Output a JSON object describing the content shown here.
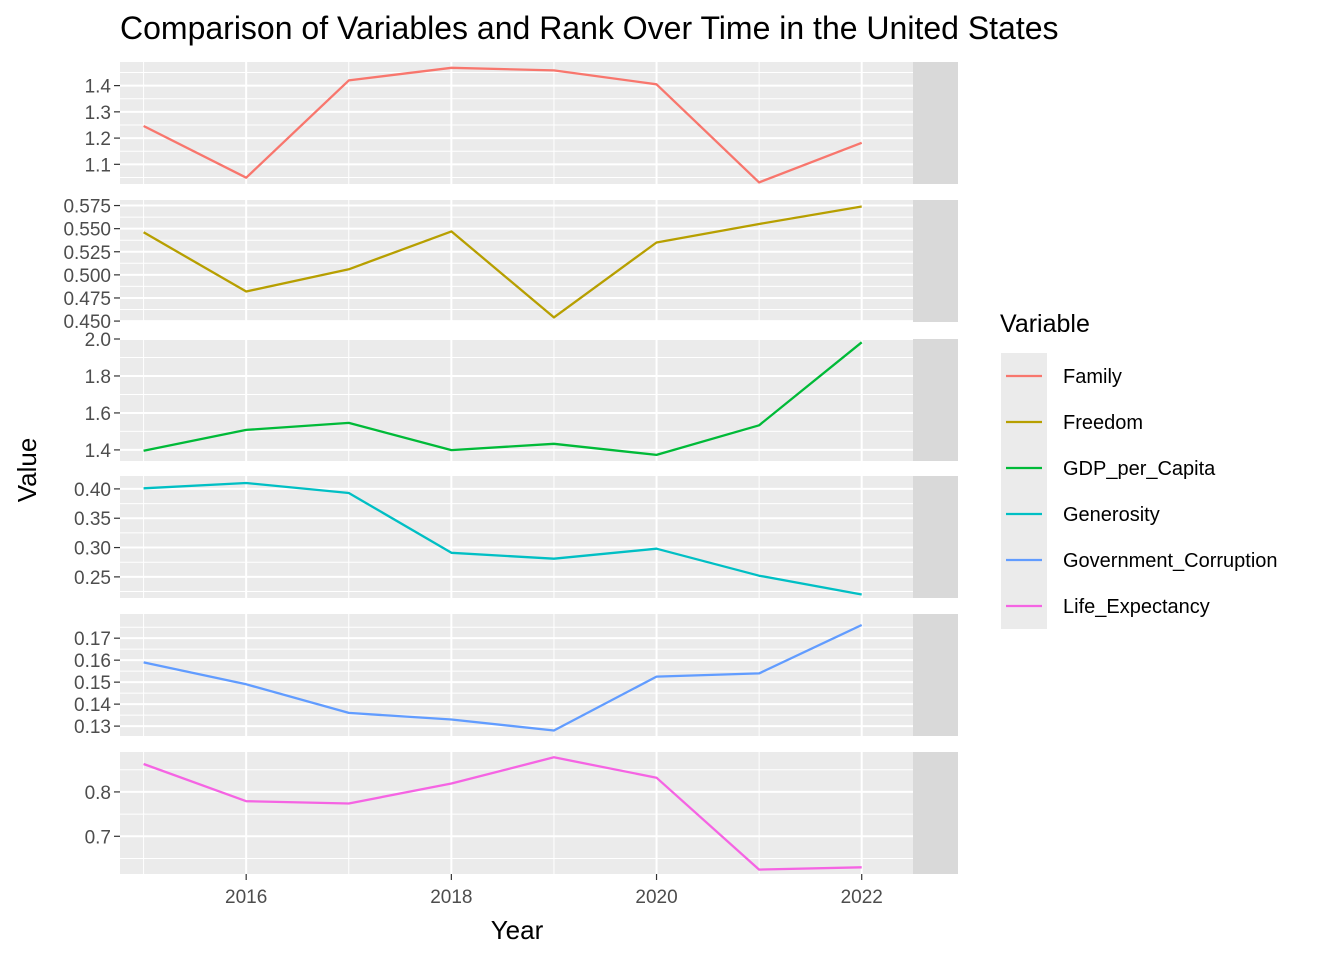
{
  "chart_data": {
    "type": "line",
    "title": "Comparison of Variables and Rank Over Time in the United States",
    "xlabel": "Year",
    "ylabel": "Value",
    "x": [
      2015,
      2016,
      2017,
      2018,
      2019,
      2020,
      2021,
      2022
    ],
    "x_ticks": [
      "2016",
      "2018",
      "2020",
      "2022"
    ],
    "xlim": [
      2014.77,
      2022.5
    ],
    "legend": {
      "title": "Variable",
      "placement": "right"
    },
    "grid": true,
    "facets": [
      {
        "name": "Family",
        "strip": "Family",
        "color": "#F8766D",
        "values": [
          1.246,
          1.049,
          1.42,
          1.468,
          1.458,
          1.405,
          1.031,
          1.182
        ],
        "ylim": [
          1.025,
          1.49
        ],
        "ticks": [
          1.1,
          1.2,
          1.3,
          1.4
        ],
        "tick_labels": [
          "1.1",
          "1.2",
          "1.3",
          "1.4"
        ]
      },
      {
        "name": "Freedom",
        "strip": "Freedom",
        "color": "#B79F00",
        "values": [
          0.546,
          0.482,
          0.506,
          0.547,
          0.454,
          0.535,
          0.555,
          0.574
        ],
        "ylim": [
          0.449,
          0.581
        ],
        "ticks": [
          0.45,
          0.475,
          0.5,
          0.525,
          0.55,
          0.575
        ],
        "tick_labels": [
          "0.450",
          "0.475",
          "0.500",
          "0.525",
          "0.550",
          "0.575"
        ]
      },
      {
        "name": "GDP_per_Capita",
        "strip": "GDP_per_Capita",
        "color": "#00BA38",
        "values": [
          1.395,
          1.508,
          1.546,
          1.399,
          1.433,
          1.373,
          1.533,
          1.982
        ],
        "ylim": [
          1.34,
          2.0
        ],
        "ticks": [
          1.4,
          1.6,
          1.8,
          2.0
        ],
        "tick_labels": [
          "1.4",
          "1.6",
          "1.8",
          "2.0"
        ]
      },
      {
        "name": "Generosity",
        "strip": "Generosity",
        "color": "#00BFC4",
        "values": [
          0.401,
          0.41,
          0.393,
          0.291,
          0.281,
          0.298,
          0.252,
          0.22
        ],
        "ylim": [
          0.214,
          0.422
        ],
        "ticks": [
          0.25,
          0.3,
          0.35,
          0.4
        ],
        "tick_labels": [
          "0.25",
          "0.30",
          "0.35",
          "0.40"
        ]
      },
      {
        "name": "Government_Corruption",
        "strip": "Government_Corruption",
        "color": "#619CFF",
        "values": [
          0.159,
          0.149,
          0.136,
          0.133,
          0.128,
          0.1525,
          0.154,
          0.176
        ],
        "ylim": [
          0.1255,
          0.181
        ],
        "ticks": [
          0.13,
          0.14,
          0.15,
          0.16,
          0.17
        ],
        "tick_labels": [
          "0.13",
          "0.14",
          "0.15",
          "0.16",
          "0.17"
        ]
      },
      {
        "name": "Life_Expectancy",
        "strip": "Life_Expectancy",
        "color": "#F564E3",
        "values": [
          0.863,
          0.779,
          0.774,
          0.819,
          0.878,
          0.832,
          0.625,
          0.63
        ],
        "ylim": [
          0.615,
          0.89
        ],
        "ticks": [
          0.7,
          0.8
        ],
        "tick_labels": [
          "0.7",
          "0.8"
        ]
      }
    ]
  }
}
